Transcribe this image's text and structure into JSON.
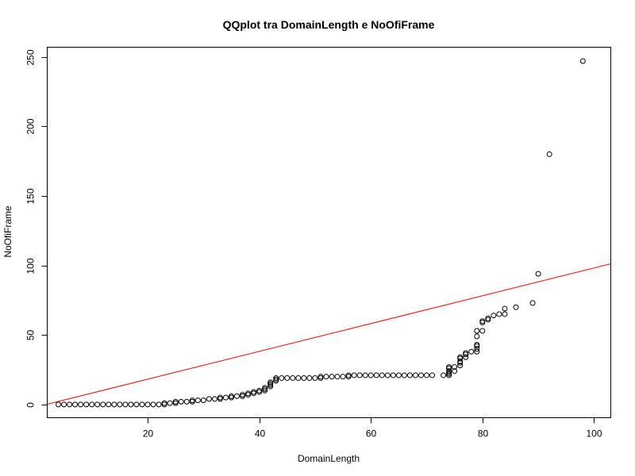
{
  "chart_data": {
    "type": "scatter",
    "title": "QQplot tra DomainLength e NoOfiFrame",
    "xlabel": "DomainLength",
    "ylabel": "NoOfiFrame",
    "xlim": [
      2,
      103
    ],
    "ylim": [
      -9.5,
      257
    ],
    "xticks": [
      20,
      40,
      60,
      80,
      100
    ],
    "yticks": [
      0,
      50,
      100,
      150,
      200,
      250
    ],
    "grid": false,
    "legend": "none",
    "colors": {
      "points": "#000000",
      "reference_line": "#ff0000",
      "axes": "#000000",
      "background": "#ffffff"
    },
    "reference_line": {
      "intercept": -1.8,
      "slope": 1.0,
      "label": ""
    },
    "series": [
      {
        "marker": "open-circle",
        "x": [
          4,
          5,
          6,
          7,
          8,
          9,
          10,
          11,
          12,
          13,
          14,
          15,
          16,
          17,
          18,
          19,
          20,
          21,
          22,
          23,
          23,
          24,
          25,
          25,
          26,
          27,
          28,
          28,
          29,
          30,
          31,
          32,
          33,
          33,
          34,
          35,
          35,
          36,
          37,
          37,
          38,
          38,
          39,
          39,
          40,
          40,
          41,
          41,
          41,
          42,
          42,
          42,
          42,
          43,
          43,
          43,
          44,
          45,
          46,
          47,
          48,
          49,
          50,
          51,
          51,
          52,
          53,
          54,
          55,
          56,
          56,
          57,
          58,
          59,
          60,
          61,
          62,
          63,
          64,
          65,
          66,
          67,
          68,
          69,
          70,
          71,
          73,
          74,
          74,
          74,
          74,
          74,
          74,
          75,
          75,
          76,
          76,
          76,
          76,
          76,
          77,
          77,
          77,
          78,
          79,
          79,
          79,
          79,
          79,
          79,
          80,
          80,
          80,
          81,
          81,
          82,
          83,
          84,
          84,
          86,
          89,
          90,
          92,
          98
        ],
        "y": [
          0,
          0,
          0,
          0,
          0,
          0,
          0,
          0,
          0,
          0,
          0,
          0,
          0,
          0,
          0,
          0,
          0,
          0,
          0,
          0,
          1,
          1,
          2,
          1,
          2,
          2,
          3,
          2,
          3,
          3,
          4,
          4,
          4,
          5,
          5,
          5,
          6,
          6,
          7,
          6,
          8,
          7,
          9,
          8,
          10,
          9,
          11,
          12,
          10,
          13,
          14,
          15,
          16,
          17,
          18,
          19,
          19,
          19,
          19,
          19,
          19,
          19,
          19,
          20,
          19,
          20,
          20,
          20,
          20,
          21,
          20,
          21,
          21,
          21,
          21,
          21,
          21,
          21,
          21,
          21,
          21,
          21,
          21,
          21,
          21,
          21,
          21,
          21,
          22,
          23,
          24,
          26,
          27,
          24,
          27,
          28,
          30,
          31,
          33,
          34,
          34,
          36,
          37,
          38,
          38,
          40,
          42,
          43,
          49,
          53,
          53,
          59,
          60,
          61,
          62,
          64,
          65,
          65,
          69,
          70,
          73,
          94,
          180,
          247
        ]
      }
    ]
  }
}
